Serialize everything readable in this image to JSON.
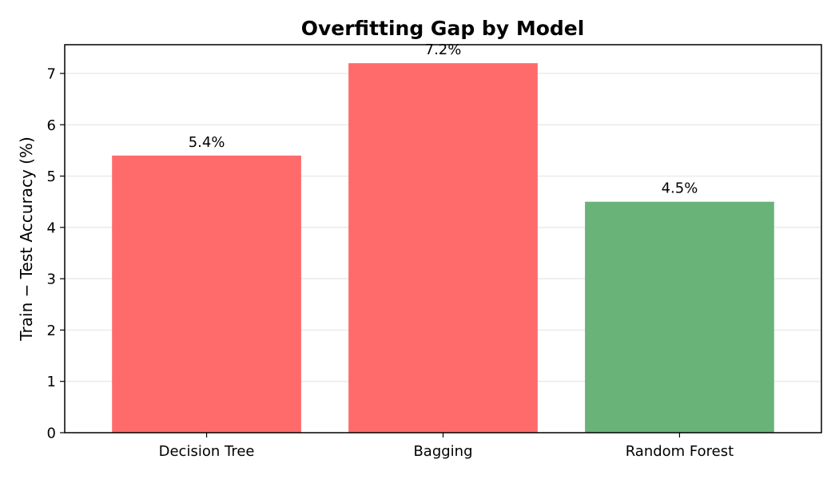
{
  "chart_data": {
    "type": "bar",
    "title": "Overfitting Gap by Model",
    "xlabel": "",
    "ylabel": "Train − Test Accuracy (%)",
    "categories": [
      "Decision Tree",
      "Bagging",
      "Random Forest"
    ],
    "values": [
      5.4,
      7.2,
      4.5
    ],
    "data_labels": [
      "5.4%",
      "7.2%",
      "4.5%"
    ],
    "bar_colors": [
      "#ff6b6b",
      "#ff6b6b",
      "#69b378"
    ],
    "ylim": [
      0,
      7.56
    ],
    "yticks": [
      0,
      1,
      2,
      3,
      4,
      5,
      6,
      7
    ],
    "grid": "horizontal",
    "legend": "none"
  }
}
